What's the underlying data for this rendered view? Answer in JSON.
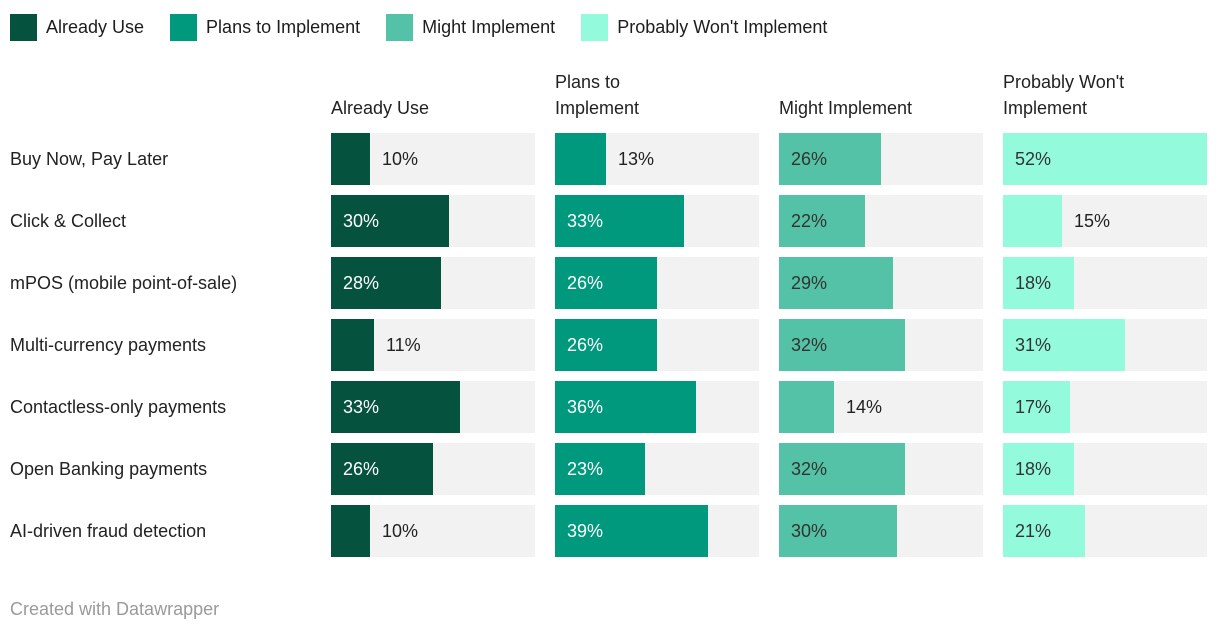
{
  "chart_data": {
    "type": "bar",
    "variant": "split-bars",
    "orientation": "horizontal",
    "categories": [
      "Buy Now, Pay Later",
      "Click & Collect",
      "mPOS (mobile point-of-sale)",
      "Multi-currency payments",
      "Contactless-only payments",
      "Open Banking payments",
      "AI-driven fraud detection"
    ],
    "series": [
      {
        "name": "Already Use",
        "header_lines": [
          "Already Use"
        ],
        "color": "#05523F",
        "label_color_inside": "#ffffff",
        "values": [
          10,
          30,
          28,
          11,
          33,
          26,
          10
        ]
      },
      {
        "name": "Plans to Implement",
        "header_lines": [
          "Plans to",
          "Implement"
        ],
        "color": "#00997D",
        "label_color_inside": "#ffffff",
        "values": [
          13,
          33,
          26,
          26,
          36,
          23,
          39
        ]
      },
      {
        "name": "Might Implement",
        "header_lines": [
          "Might Implement"
        ],
        "color": "#54C2A6",
        "label_color_inside": "#333333",
        "values": [
          26,
          22,
          29,
          32,
          14,
          32,
          30
        ]
      },
      {
        "name": "Probably Won't Implement",
        "header_lines": [
          "Probably Won't",
          "Implement"
        ],
        "color": "#93FBDC",
        "label_color_inside": "#333333",
        "values": [
          52,
          15,
          18,
          31,
          17,
          18,
          21
        ]
      }
    ],
    "value_suffix": "%",
    "xmax": 52,
    "track_color": "#f2f2f2",
    "outside_label_color": "#222222",
    "legend_position": "top",
    "grid": false,
    "title": ""
  },
  "footer": {
    "credit": "Created with Datawrapper"
  }
}
